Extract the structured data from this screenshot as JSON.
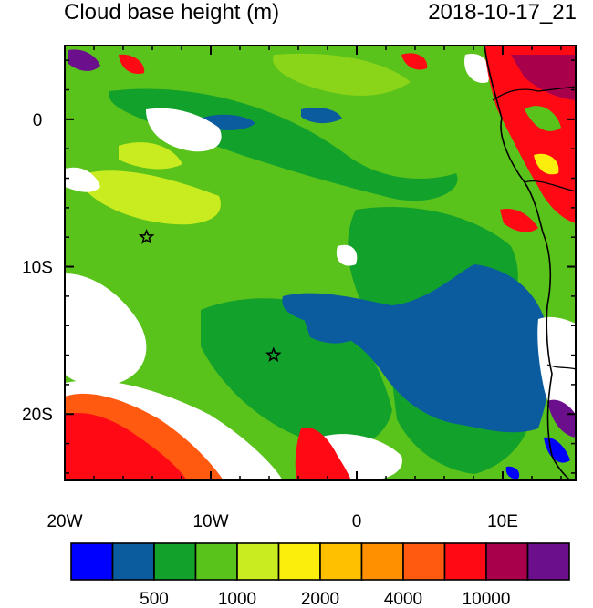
{
  "title": {
    "left": "Cloud base height (m)",
    "right": "2018-10-17_21"
  },
  "axes": {
    "lon_range": [
      -20,
      15
    ],
    "lat_range": [
      -24.5,
      5
    ],
    "x_ticks": [
      {
        "value": -20,
        "label": "20W"
      },
      {
        "value": -10,
        "label": "10W"
      },
      {
        "value": 0,
        "label": "0"
      },
      {
        "value": 10,
        "label": "10E"
      }
    ],
    "y_ticks": [
      {
        "value": 0,
        "label": "0"
      },
      {
        "value": -10,
        "label": "10S"
      },
      {
        "value": -20,
        "label": "20S"
      }
    ]
  },
  "markers": [
    {
      "name": "site-star",
      "lon": -14.4,
      "lat": -8.0
    },
    {
      "name": "site-star",
      "lon": -5.7,
      "lat": -16.0
    }
  ],
  "colorbar": {
    "colors": [
      "#0000ff",
      "#0b5c9e",
      "#12a22c",
      "#59c21b",
      "#c8ec1f",
      "#fcee0c",
      "#ffc000",
      "#ff9000",
      "#ff5a10",
      "#ff0a14",
      "#a8004a",
      "#6b0f8c"
    ],
    "labels": [
      {
        "after_box": 2,
        "text": "500"
      },
      {
        "after_box": 4,
        "text": "1000"
      },
      {
        "after_box": 6,
        "text": "2000"
      },
      {
        "after_box": 8,
        "text": "4000"
      },
      {
        "after_box": 10,
        "text": "10000"
      }
    ]
  },
  "legend_colors": {
    "deep_blue": "#0000ff",
    "dark_blue": "#0b5c9e",
    "dark_green": "#12a22c",
    "green": "#59c21b",
    "yellow_green": "#c8ec1f",
    "red": "#ff0a14",
    "purple": "#6b0f8c"
  }
}
